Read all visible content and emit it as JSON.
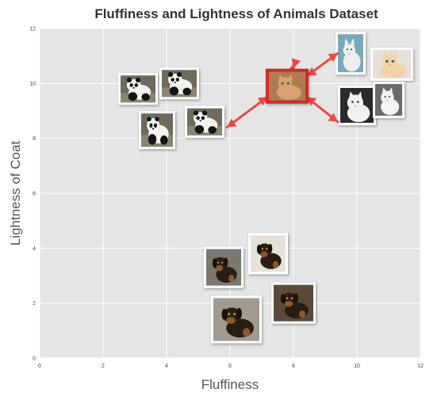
{
  "chart_data": {
    "type": "scatter",
    "title": "Fluffiness and Lightness of Animals Dataset",
    "xlabel": "Fluffiness",
    "ylabel": "Lightness of Coat",
    "xlim": [
      0,
      12
    ],
    "ylim": [
      0,
      12
    ],
    "x_ticks": [
      "0",
      "2",
      "4",
      "6",
      "8",
      "10",
      "12"
    ],
    "y_ticks": [
      "0",
      "2",
      "4",
      "6",
      "8",
      "10",
      "12"
    ],
    "grid": true,
    "marker_style": "animal photo thumbnails",
    "series": [
      {
        "animal": "panda",
        "points": [
          {
            "x": 3.1,
            "y": 9.8
          },
          {
            "x": 4.4,
            "y": 10.0
          },
          {
            "x": 3.7,
            "y": 8.3
          },
          {
            "x": 5.2,
            "y": 8.6
          }
        ]
      },
      {
        "animal": "cat",
        "points": [
          {
            "x": 9.8,
            "y": 11.1
          },
          {
            "x": 11.1,
            "y": 10.7
          },
          {
            "x": 10.0,
            "y": 9.2
          },
          {
            "x": 11.0,
            "y": 9.4
          }
        ]
      },
      {
        "animal": "dog",
        "points": [
          {
            "x": 5.8,
            "y": 3.3
          },
          {
            "x": 7.2,
            "y": 3.8
          },
          {
            "x": 8.0,
            "y": 2.0
          },
          {
            "x": 6.2,
            "y": 1.4
          }
        ]
      }
    ],
    "query_point": {
      "animal": "cat",
      "x": 7.8,
      "y": 9.9,
      "highlight_color": "#d42a2a"
    },
    "arrows": {
      "color": "#e8484a",
      "targets": [
        {
          "x": 8.0,
          "y": 10.7
        },
        {
          "x": 9.4,
          "y": 11.1
        },
        {
          "x": 5.9,
          "y": 8.4
        },
        {
          "x": 9.4,
          "y": 8.6
        }
      ]
    },
    "colors": {
      "plot_background": "#e5e5e5",
      "grid": "#ffffff",
      "thumbnail_border": "#ffffff"
    }
  }
}
